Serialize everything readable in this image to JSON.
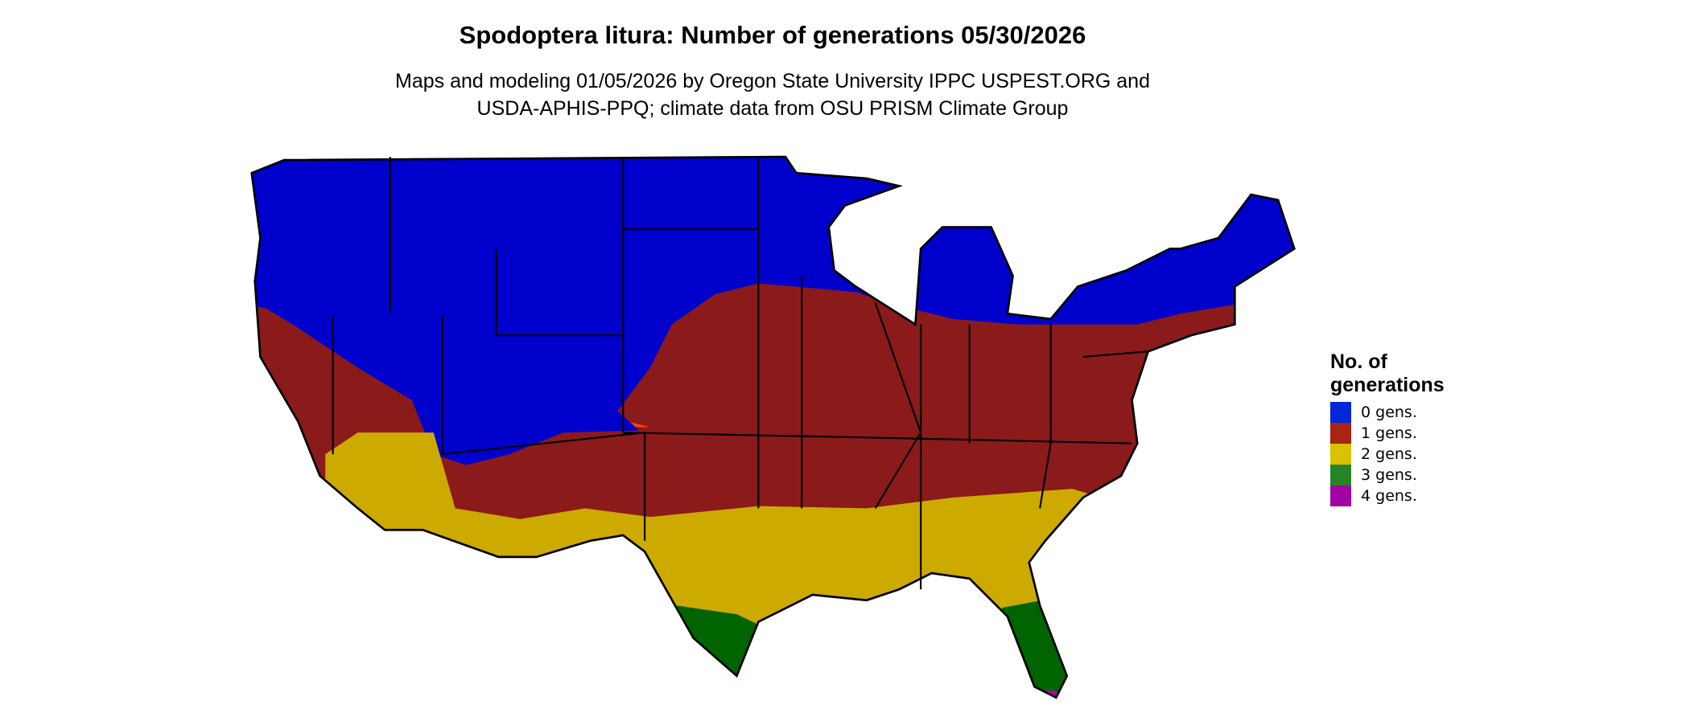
{
  "title": "Spodoptera litura: Number of generations 05/30/2026",
  "subtitle_line1": "Maps and modeling 01/05/2026 by Oregon State University IPPC USPEST.ORG and",
  "subtitle_line2": "USDA-APHIS-PPQ; climate data from OSU PRISM Climate Group",
  "legend": {
    "title_line1": "No. of",
    "title_line2": "generations",
    "items": [
      {
        "label": "0 gens.",
        "color": "#0027D9"
      },
      {
        "label": "1 gens.",
        "color": "#A92414"
      },
      {
        "label": "2 gens.",
        "color": "#D9C200"
      },
      {
        "label": "3 gens.",
        "color": "#268326"
      },
      {
        "label": "4 gens.",
        "color": "#A300A3"
      }
    ]
  },
  "map_colors": {
    "zero": "#0000CC",
    "one": "#8B1A1A",
    "one_fringe": "#FF4500",
    "two": "#CCAA00",
    "three": "#006400",
    "four": "#B000B0"
  }
}
